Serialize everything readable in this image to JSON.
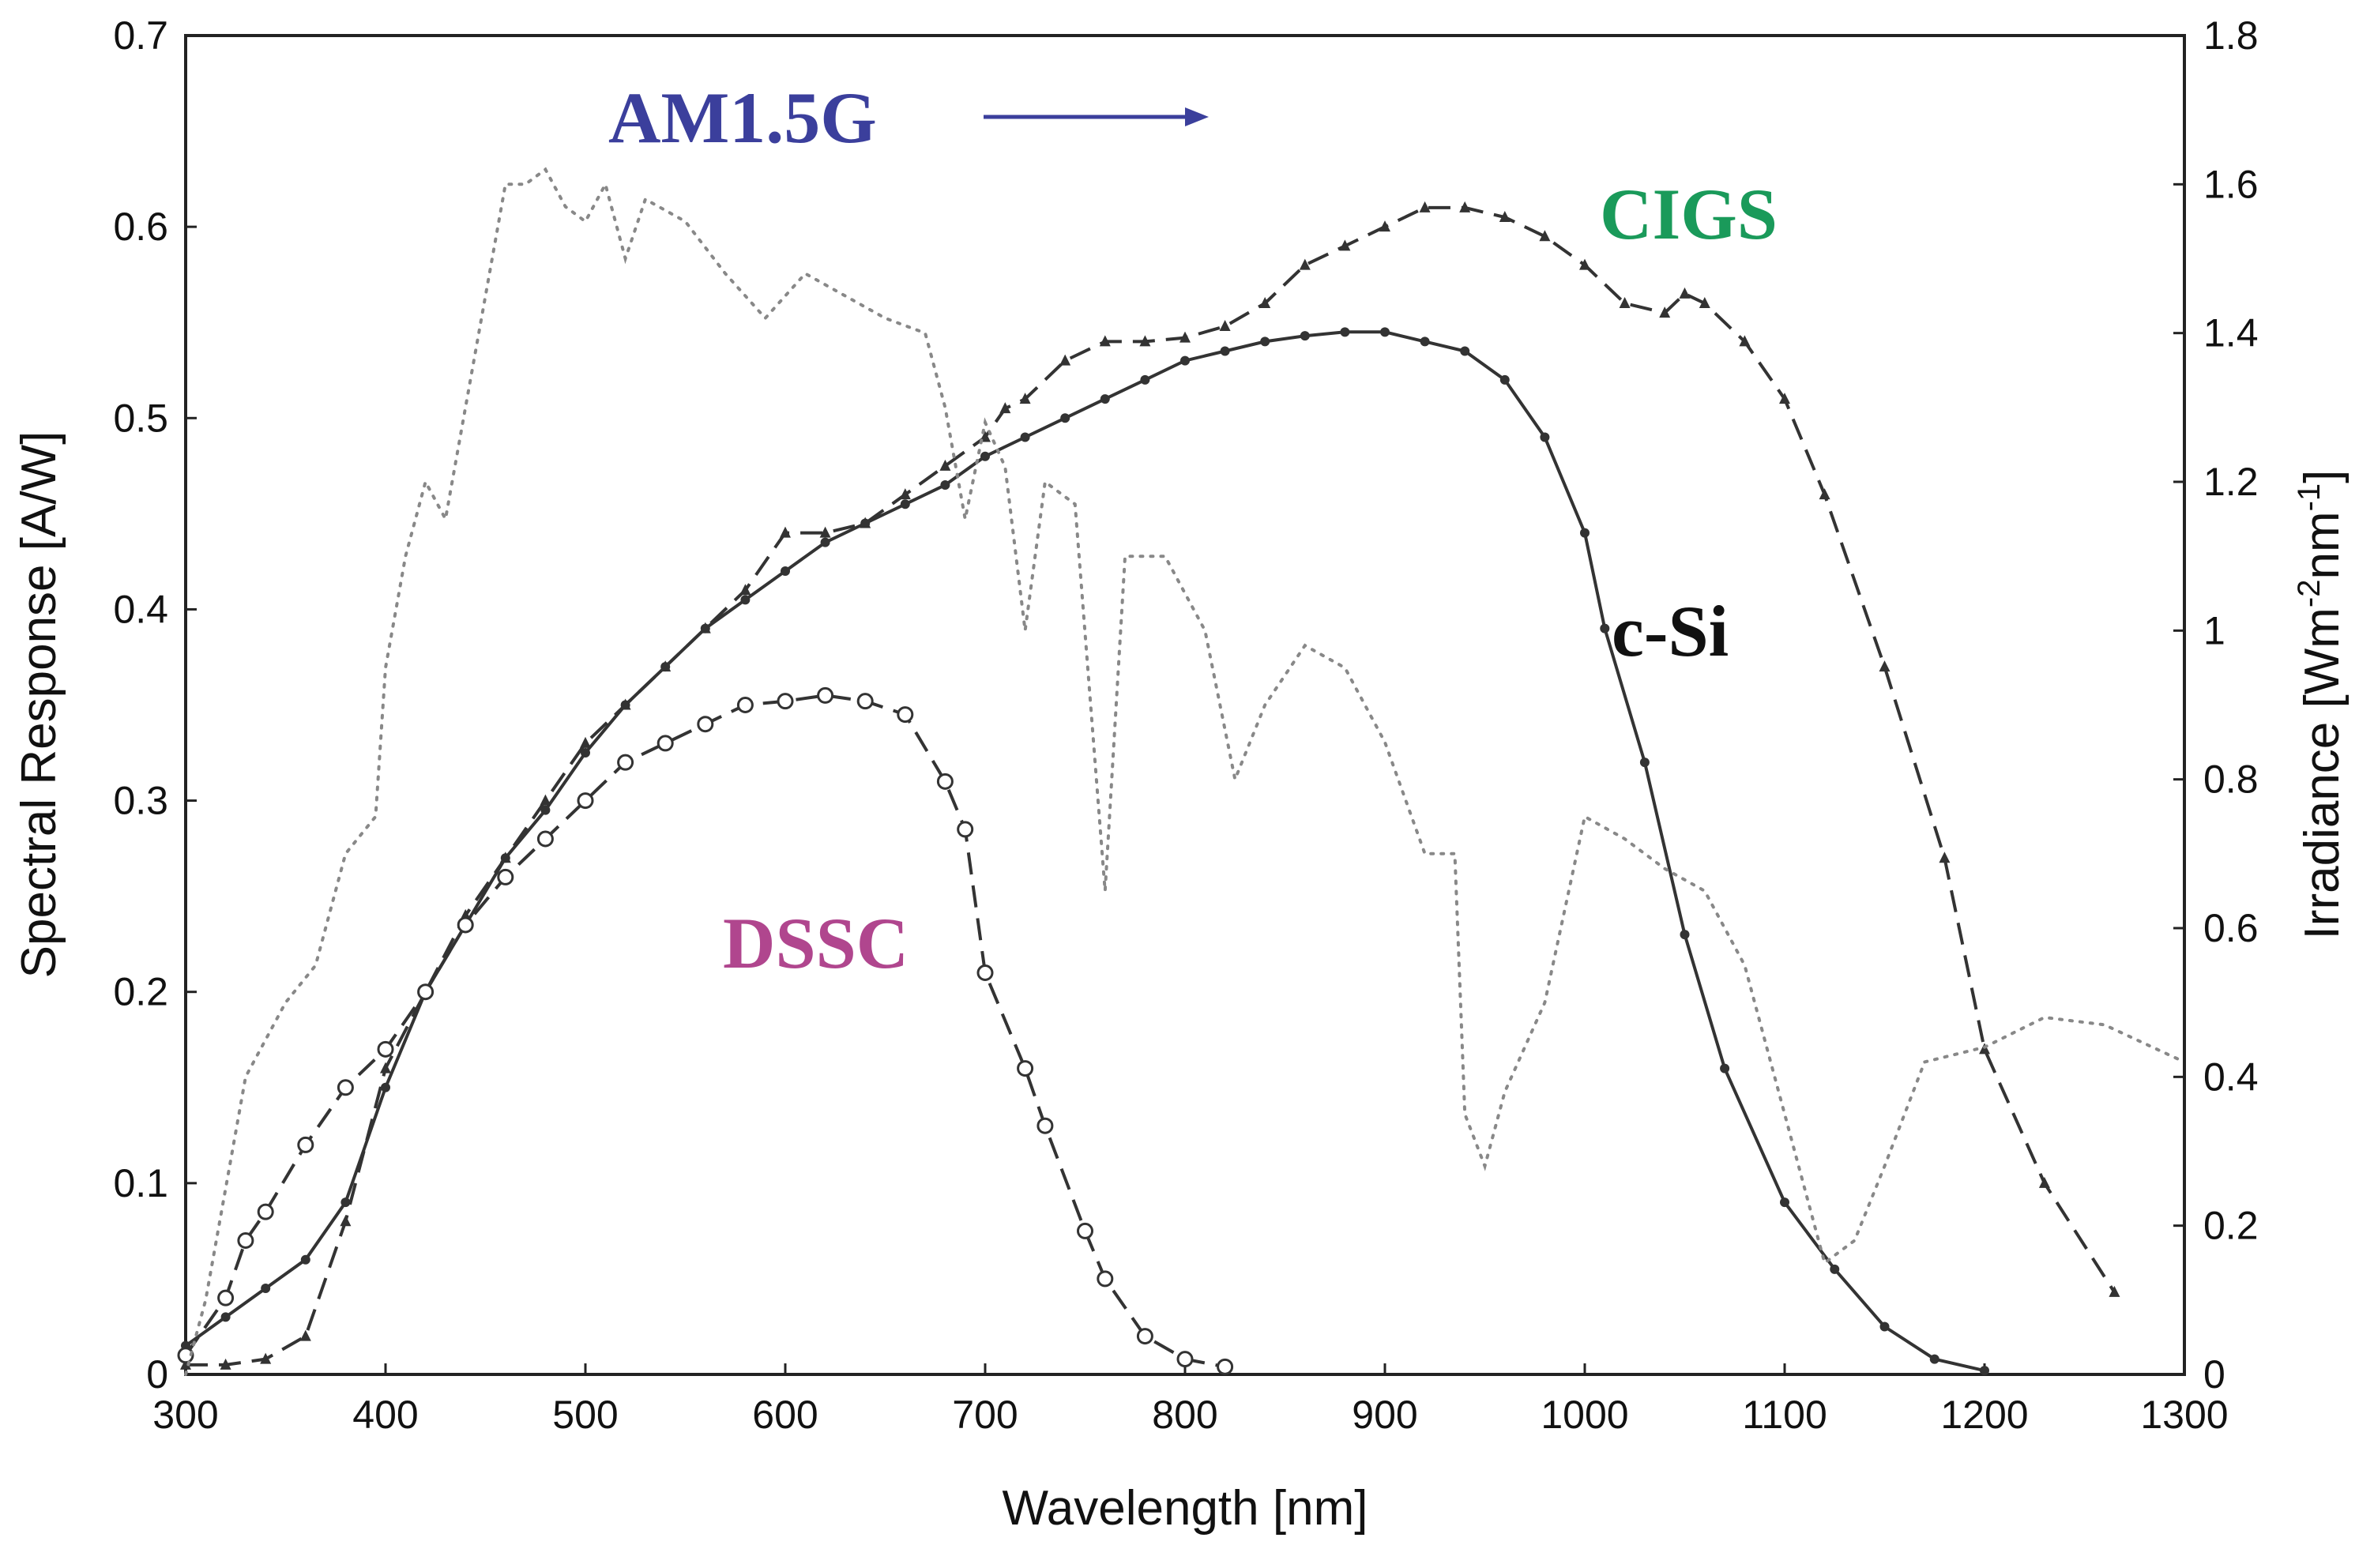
{
  "chart_data": {
    "type": "line",
    "xlabel": "Wavelength [nm]",
    "ylabel_left": "Spectral Response [A/W]",
    "ylabel_right_base": "Irradiance [Wm",
    "ylabel_right_sup1": "-2",
    "ylabel_right_mid": "nm",
    "ylabel_right_sup2": "-1",
    "ylabel_right_end": "]",
    "xlim": [
      300,
      1300
    ],
    "ylim_left": [
      0,
      0.7
    ],
    "ylim_right": [
      0,
      1.8
    ],
    "xticks": [
      "300",
      "400",
      "500",
      "600",
      "700",
      "800",
      "900",
      "1000",
      "1100",
      "1200",
      "1300"
    ],
    "yticks_left": [
      "0",
      "0.1",
      "0.2",
      "0.3",
      "0.4",
      "0.5",
      "0.6",
      "0.7"
    ],
    "yticks_right": [
      "0",
      "0.2",
      "0.4",
      "0.6",
      "0.8",
      "1",
      "1.2",
      "1.4",
      "1.6",
      "1.8"
    ],
    "annotation_am": "AM1.5G",
    "colors": {
      "am_label": "#3b3f9c",
      "cigs_label": "#1a9a5a",
      "csi_label": "#111111",
      "dssc_label": "#b0468e",
      "lines": "#333333",
      "irradiance": "#888888"
    },
    "series": [
      {
        "name": "c-Si",
        "axis": "left",
        "style": "solid",
        "marker": "dot",
        "points": [
          [
            300,
            0.015
          ],
          [
            320,
            0.03
          ],
          [
            340,
            0.045
          ],
          [
            360,
            0.06
          ],
          [
            380,
            0.09
          ],
          [
            400,
            0.15
          ],
          [
            420,
            0.2
          ],
          [
            440,
            0.235
          ],
          [
            460,
            0.27
          ],
          [
            480,
            0.295
          ],
          [
            500,
            0.325
          ],
          [
            520,
            0.35
          ],
          [
            540,
            0.37
          ],
          [
            560,
            0.39
          ],
          [
            580,
            0.405
          ],
          [
            600,
            0.42
          ],
          [
            620,
            0.435
          ],
          [
            640,
            0.445
          ],
          [
            660,
            0.455
          ],
          [
            680,
            0.465
          ],
          [
            700,
            0.48
          ],
          [
            720,
            0.49
          ],
          [
            740,
            0.5
          ],
          [
            760,
            0.51
          ],
          [
            780,
            0.52
          ],
          [
            800,
            0.53
          ],
          [
            820,
            0.535
          ],
          [
            840,
            0.54
          ],
          [
            860,
            0.543
          ],
          [
            880,
            0.545
          ],
          [
            900,
            0.545
          ],
          [
            920,
            0.54
          ],
          [
            940,
            0.535
          ],
          [
            960,
            0.52
          ],
          [
            980,
            0.49
          ],
          [
            1000,
            0.44
          ],
          [
            1010,
            0.39
          ],
          [
            1030,
            0.32
          ],
          [
            1050,
            0.23
          ],
          [
            1070,
            0.16
          ],
          [
            1100,
            0.09
          ],
          [
            1125,
            0.055
          ],
          [
            1150,
            0.025
          ],
          [
            1175,
            0.008
          ],
          [
            1200,
            0.002
          ]
        ]
      },
      {
        "name": "CIGS",
        "axis": "left",
        "style": "dashed",
        "marker": "triangle",
        "points": [
          [
            300,
            0.005
          ],
          [
            320,
            0.005
          ],
          [
            340,
            0.008
          ],
          [
            360,
            0.02
          ],
          [
            380,
            0.08
          ],
          [
            400,
            0.16
          ],
          [
            420,
            0.2
          ],
          [
            440,
            0.24
          ],
          [
            460,
            0.27
          ],
          [
            480,
            0.3
          ],
          [
            500,
            0.33
          ],
          [
            520,
            0.35
          ],
          [
            540,
            0.37
          ],
          [
            560,
            0.39
          ],
          [
            580,
            0.41
          ],
          [
            600,
            0.44
          ],
          [
            620,
            0.44
          ],
          [
            640,
            0.445
          ],
          [
            660,
            0.46
          ],
          [
            680,
            0.475
          ],
          [
            700,
            0.49
          ],
          [
            710,
            0.505
          ],
          [
            720,
            0.51
          ],
          [
            740,
            0.53
          ],
          [
            760,
            0.54
          ],
          [
            780,
            0.54
          ],
          [
            800,
            0.542
          ],
          [
            820,
            0.548
          ],
          [
            840,
            0.56
          ],
          [
            860,
            0.58
          ],
          [
            880,
            0.59
          ],
          [
            900,
            0.6
          ],
          [
            920,
            0.61
          ],
          [
            940,
            0.61
          ],
          [
            960,
            0.605
          ],
          [
            980,
            0.595
          ],
          [
            1000,
            0.58
          ],
          [
            1020,
            0.56
          ],
          [
            1040,
            0.555
          ],
          [
            1050,
            0.565
          ],
          [
            1060,
            0.56
          ],
          [
            1080,
            0.54
          ],
          [
            1100,
            0.51
          ],
          [
            1120,
            0.46
          ],
          [
            1150,
            0.37
          ],
          [
            1180,
            0.27
          ],
          [
            1200,
            0.17
          ],
          [
            1230,
            0.1
          ],
          [
            1265,
            0.043
          ]
        ]
      },
      {
        "name": "DSSC",
        "axis": "left",
        "style": "dashed",
        "marker": "circle",
        "points": [
          [
            300,
            0.01
          ],
          [
            320,
            0.04
          ],
          [
            330,
            0.07
          ],
          [
            340,
            0.085
          ],
          [
            360,
            0.12
          ],
          [
            380,
            0.15
          ],
          [
            400,
            0.17
          ],
          [
            420,
            0.2
          ],
          [
            440,
            0.235
          ],
          [
            460,
            0.26
          ],
          [
            480,
            0.28
          ],
          [
            500,
            0.3
          ],
          [
            520,
            0.32
          ],
          [
            540,
            0.33
          ],
          [
            560,
            0.34
          ],
          [
            580,
            0.35
          ],
          [
            600,
            0.352
          ],
          [
            620,
            0.355
          ],
          [
            640,
            0.352
          ],
          [
            660,
            0.345
          ],
          [
            680,
            0.31
          ],
          [
            690,
            0.285
          ],
          [
            700,
            0.21
          ],
          [
            720,
            0.16
          ],
          [
            730,
            0.13
          ],
          [
            750,
            0.075
          ],
          [
            760,
            0.05
          ],
          [
            780,
            0.02
          ],
          [
            800,
            0.008
          ],
          [
            820,
            0.004
          ]
        ]
      },
      {
        "name": "AM1.5G",
        "axis": "right",
        "style": "dotted",
        "marker": "none",
        "points": [
          [
            300,
            0.0
          ],
          [
            310,
            0.1
          ],
          [
            320,
            0.25
          ],
          [
            330,
            0.4
          ],
          [
            350,
            0.5
          ],
          [
            365,
            0.55
          ],
          [
            380,
            0.7
          ],
          [
            395,
            0.75
          ],
          [
            400,
            0.95
          ],
          [
            410,
            1.1
          ],
          [
            420,
            1.2
          ],
          [
            430,
            1.15
          ],
          [
            440,
            1.3
          ],
          [
            450,
            1.45
          ],
          [
            460,
            1.6
          ],
          [
            470,
            1.6
          ],
          [
            480,
            1.62
          ],
          [
            490,
            1.57
          ],
          [
            500,
            1.55
          ],
          [
            510,
            1.6
          ],
          [
            520,
            1.5
          ],
          [
            530,
            1.58
          ],
          [
            550,
            1.55
          ],
          [
            570,
            1.48
          ],
          [
            590,
            1.42
          ],
          [
            610,
            1.48
          ],
          [
            630,
            1.45
          ],
          [
            650,
            1.42
          ],
          [
            670,
            1.4
          ],
          [
            680,
            1.3
          ],
          [
            690,
            1.15
          ],
          [
            700,
            1.28
          ],
          [
            710,
            1.22
          ],
          [
            720,
            1.0
          ],
          [
            730,
            1.2
          ],
          [
            745,
            1.17
          ],
          [
            760,
            0.65
          ],
          [
            770,
            1.1
          ],
          [
            790,
            1.1
          ],
          [
            810,
            1.0
          ],
          [
            825,
            0.8
          ],
          [
            840,
            0.9
          ],
          [
            860,
            0.98
          ],
          [
            880,
            0.95
          ],
          [
            900,
            0.85
          ],
          [
            920,
            0.7
          ],
          [
            935,
            0.7
          ],
          [
            940,
            0.35
          ],
          [
            950,
            0.28
          ],
          [
            960,
            0.38
          ],
          [
            980,
            0.5
          ],
          [
            1000,
            0.75
          ],
          [
            1020,
            0.72
          ],
          [
            1040,
            0.68
          ],
          [
            1060,
            0.65
          ],
          [
            1080,
            0.55
          ],
          [
            1100,
            0.35
          ],
          [
            1120,
            0.15
          ],
          [
            1135,
            0.18
          ],
          [
            1150,
            0.28
          ],
          [
            1170,
            0.42
          ],
          [
            1200,
            0.44
          ],
          [
            1230,
            0.48
          ],
          [
            1260,
            0.47
          ],
          [
            1300,
            0.42
          ]
        ]
      }
    ]
  }
}
